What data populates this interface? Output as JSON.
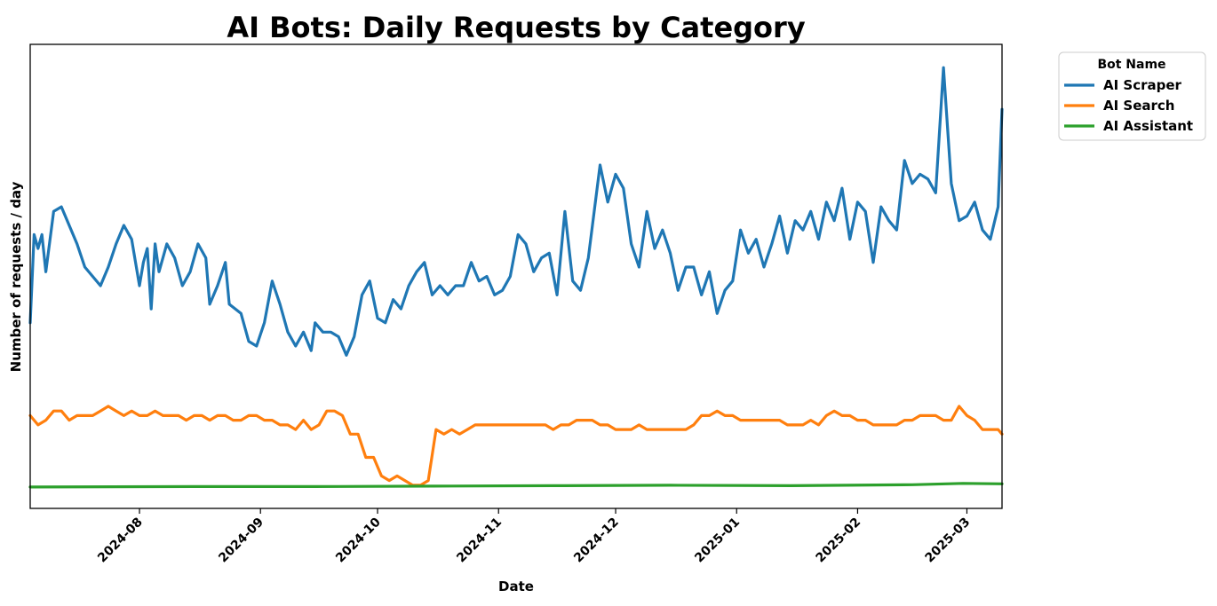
{
  "chart_data": {
    "type": "line",
    "title": "AI Bots: Daily Requests by Category",
    "xlabel": "Date",
    "ylabel": "Number of requests / day",
    "x_range": [
      "2024-07-04",
      "2025-03-10"
    ],
    "x_ticks": [
      "2024-08",
      "2024-09",
      "2024-10",
      "2024-11",
      "2024-12",
      "2025-01",
      "2025-02",
      "2025-03"
    ],
    "y_ticks_shown": false,
    "ylim": [
      0,
      100
    ],
    "grid": false,
    "legend": {
      "title": "Bot Name",
      "position": "outside-top-right"
    },
    "series": [
      {
        "name": "AI Scraper",
        "color": "#1f77b4",
        "points": [
          [
            "2024-07-04",
            40
          ],
          [
            "2024-07-05",
            59
          ],
          [
            "2024-07-06",
            56
          ],
          [
            "2024-07-07",
            59
          ],
          [
            "2024-07-08",
            51
          ],
          [
            "2024-07-10",
            64
          ],
          [
            "2024-07-12",
            65
          ],
          [
            "2024-07-14",
            61
          ],
          [
            "2024-07-16",
            57
          ],
          [
            "2024-07-18",
            52
          ],
          [
            "2024-07-20",
            50
          ],
          [
            "2024-07-22",
            48
          ],
          [
            "2024-07-24",
            52
          ],
          [
            "2024-07-26",
            57
          ],
          [
            "2024-07-28",
            61
          ],
          [
            "2024-07-30",
            58
          ],
          [
            "2024-08-01",
            48
          ],
          [
            "2024-08-02",
            53
          ],
          [
            "2024-08-03",
            56
          ],
          [
            "2024-08-04",
            43
          ],
          [
            "2024-08-05",
            57
          ],
          [
            "2024-08-06",
            51
          ],
          [
            "2024-08-08",
            57
          ],
          [
            "2024-08-10",
            54
          ],
          [
            "2024-08-12",
            48
          ],
          [
            "2024-08-14",
            51
          ],
          [
            "2024-08-16",
            57
          ],
          [
            "2024-08-18",
            54
          ],
          [
            "2024-08-19",
            44
          ],
          [
            "2024-08-21",
            48
          ],
          [
            "2024-08-23",
            53
          ],
          [
            "2024-08-24",
            44
          ],
          [
            "2024-08-27",
            42
          ],
          [
            "2024-08-29",
            36
          ],
          [
            "2024-08-31",
            35
          ],
          [
            "2024-09-02",
            40
          ],
          [
            "2024-09-04",
            49
          ],
          [
            "2024-09-06",
            44
          ],
          [
            "2024-09-08",
            38
          ],
          [
            "2024-09-10",
            35
          ],
          [
            "2024-09-12",
            38
          ],
          [
            "2024-09-14",
            34
          ],
          [
            "2024-09-15",
            40
          ],
          [
            "2024-09-17",
            38
          ],
          [
            "2024-09-19",
            38
          ],
          [
            "2024-09-21",
            37
          ],
          [
            "2024-09-23",
            33
          ],
          [
            "2024-09-25",
            37
          ],
          [
            "2024-09-27",
            46
          ],
          [
            "2024-09-29",
            49
          ],
          [
            "2024-10-01",
            41
          ],
          [
            "2024-10-03",
            40
          ],
          [
            "2024-10-05",
            45
          ],
          [
            "2024-10-07",
            43
          ],
          [
            "2024-10-09",
            48
          ],
          [
            "2024-10-11",
            51
          ],
          [
            "2024-10-13",
            53
          ],
          [
            "2024-10-15",
            46
          ],
          [
            "2024-10-17",
            48
          ],
          [
            "2024-10-19",
            46
          ],
          [
            "2024-10-21",
            48
          ],
          [
            "2024-10-23",
            48
          ],
          [
            "2024-10-25",
            53
          ],
          [
            "2024-10-27",
            49
          ],
          [
            "2024-10-29",
            50
          ],
          [
            "2024-10-31",
            46
          ],
          [
            "2024-11-02",
            47
          ],
          [
            "2024-11-04",
            50
          ],
          [
            "2024-11-06",
            59
          ],
          [
            "2024-11-08",
            57
          ],
          [
            "2024-11-10",
            51
          ],
          [
            "2024-11-12",
            54
          ],
          [
            "2024-11-14",
            55
          ],
          [
            "2024-11-16",
            46
          ],
          [
            "2024-11-18",
            64
          ],
          [
            "2024-11-20",
            49
          ],
          [
            "2024-11-22",
            47
          ],
          [
            "2024-11-24",
            54
          ],
          [
            "2024-11-27",
            74
          ],
          [
            "2024-11-29",
            66
          ],
          [
            "2024-12-01",
            72
          ],
          [
            "2024-12-03",
            69
          ],
          [
            "2024-12-05",
            57
          ],
          [
            "2024-12-07",
            52
          ],
          [
            "2024-12-09",
            64
          ],
          [
            "2024-12-11",
            56
          ],
          [
            "2024-12-13",
            60
          ],
          [
            "2024-12-15",
            55
          ],
          [
            "2024-12-17",
            47
          ],
          [
            "2024-12-19",
            52
          ],
          [
            "2024-12-21",
            52
          ],
          [
            "2024-12-23",
            46
          ],
          [
            "2024-12-25",
            51
          ],
          [
            "2024-12-27",
            42
          ],
          [
            "2024-12-29",
            47
          ],
          [
            "2024-12-31",
            49
          ],
          [
            "2025-01-02",
            60
          ],
          [
            "2025-01-04",
            55
          ],
          [
            "2025-01-06",
            58
          ],
          [
            "2025-01-08",
            52
          ],
          [
            "2025-01-10",
            57
          ],
          [
            "2025-01-12",
            63
          ],
          [
            "2025-01-14",
            55
          ],
          [
            "2025-01-16",
            62
          ],
          [
            "2025-01-18",
            60
          ],
          [
            "2025-01-20",
            64
          ],
          [
            "2025-01-22",
            58
          ],
          [
            "2025-01-24",
            66
          ],
          [
            "2025-01-26",
            62
          ],
          [
            "2025-01-28",
            69
          ],
          [
            "2025-01-30",
            58
          ],
          [
            "2025-02-01",
            66
          ],
          [
            "2025-02-03",
            64
          ],
          [
            "2025-02-05",
            53
          ],
          [
            "2025-02-07",
            65
          ],
          [
            "2025-02-09",
            62
          ],
          [
            "2025-02-11",
            60
          ],
          [
            "2025-02-13",
            75
          ],
          [
            "2025-02-15",
            70
          ],
          [
            "2025-02-17",
            72
          ],
          [
            "2025-02-19",
            71
          ],
          [
            "2025-02-21",
            68
          ],
          [
            "2025-02-23",
            95
          ],
          [
            "2025-02-25",
            70
          ],
          [
            "2025-02-27",
            62
          ],
          [
            "2025-03-01",
            63
          ],
          [
            "2025-03-03",
            66
          ],
          [
            "2025-03-05",
            60
          ],
          [
            "2025-03-07",
            58
          ],
          [
            "2025-03-09",
            65
          ],
          [
            "2025-03-10",
            86
          ]
        ]
      },
      {
        "name": "AI Search",
        "color": "#ff7f0e",
        "points": [
          [
            "2024-07-04",
            20
          ],
          [
            "2024-07-06",
            18
          ],
          [
            "2024-07-08",
            19
          ],
          [
            "2024-07-10",
            21
          ],
          [
            "2024-07-12",
            21
          ],
          [
            "2024-07-14",
            19
          ],
          [
            "2024-07-16",
            20
          ],
          [
            "2024-07-18",
            20
          ],
          [
            "2024-07-20",
            20
          ],
          [
            "2024-07-22",
            21
          ],
          [
            "2024-07-24",
            22
          ],
          [
            "2024-07-26",
            21
          ],
          [
            "2024-07-28",
            20
          ],
          [
            "2024-07-30",
            21
          ],
          [
            "2024-08-01",
            20
          ],
          [
            "2024-08-03",
            20
          ],
          [
            "2024-08-05",
            21
          ],
          [
            "2024-08-07",
            20
          ],
          [
            "2024-08-09",
            20
          ],
          [
            "2024-08-11",
            20
          ],
          [
            "2024-08-13",
            19
          ],
          [
            "2024-08-15",
            20
          ],
          [
            "2024-08-17",
            20
          ],
          [
            "2024-08-19",
            19
          ],
          [
            "2024-08-21",
            20
          ],
          [
            "2024-08-23",
            20
          ],
          [
            "2024-08-25",
            19
          ],
          [
            "2024-08-27",
            19
          ],
          [
            "2024-08-29",
            20
          ],
          [
            "2024-08-31",
            20
          ],
          [
            "2024-09-02",
            19
          ],
          [
            "2024-09-04",
            19
          ],
          [
            "2024-09-06",
            18
          ],
          [
            "2024-09-08",
            18
          ],
          [
            "2024-09-10",
            17
          ],
          [
            "2024-09-12",
            19
          ],
          [
            "2024-09-14",
            17
          ],
          [
            "2024-09-16",
            18
          ],
          [
            "2024-09-18",
            21
          ],
          [
            "2024-09-20",
            21
          ],
          [
            "2024-09-22",
            20
          ],
          [
            "2024-09-24",
            16
          ],
          [
            "2024-09-26",
            16
          ],
          [
            "2024-09-28",
            11
          ],
          [
            "2024-09-30",
            11
          ],
          [
            "2024-10-02",
            7
          ],
          [
            "2024-10-04",
            6
          ],
          [
            "2024-10-06",
            7
          ],
          [
            "2024-10-08",
            6
          ],
          [
            "2024-10-10",
            5
          ],
          [
            "2024-10-12",
            5
          ],
          [
            "2024-10-14",
            6
          ],
          [
            "2024-10-16",
            17
          ],
          [
            "2024-10-18",
            16
          ],
          [
            "2024-10-20",
            17
          ],
          [
            "2024-10-22",
            16
          ],
          [
            "2024-10-24",
            17
          ],
          [
            "2024-10-26",
            18
          ],
          [
            "2024-10-28",
            18
          ],
          [
            "2024-10-30",
            18
          ],
          [
            "2024-11-01",
            18
          ],
          [
            "2024-11-03",
            18
          ],
          [
            "2024-11-05",
            18
          ],
          [
            "2024-11-07",
            18
          ],
          [
            "2024-11-09",
            18
          ],
          [
            "2024-11-11",
            18
          ],
          [
            "2024-11-13",
            18
          ],
          [
            "2024-11-15",
            17
          ],
          [
            "2024-11-17",
            18
          ],
          [
            "2024-11-19",
            18
          ],
          [
            "2024-11-21",
            19
          ],
          [
            "2024-11-23",
            19
          ],
          [
            "2024-11-25",
            19
          ],
          [
            "2024-11-27",
            18
          ],
          [
            "2024-11-29",
            18
          ],
          [
            "2024-12-01",
            17
          ],
          [
            "2024-12-03",
            17
          ],
          [
            "2024-12-05",
            17
          ],
          [
            "2024-12-07",
            18
          ],
          [
            "2024-12-09",
            17
          ],
          [
            "2024-12-11",
            17
          ],
          [
            "2024-12-13",
            17
          ],
          [
            "2024-12-15",
            17
          ],
          [
            "2024-12-17",
            17
          ],
          [
            "2024-12-19",
            17
          ],
          [
            "2024-12-21",
            18
          ],
          [
            "2024-12-23",
            20
          ],
          [
            "2024-12-25",
            20
          ],
          [
            "2024-12-27",
            21
          ],
          [
            "2024-12-29",
            20
          ],
          [
            "2024-12-31",
            20
          ],
          [
            "2025-01-02",
            19
          ],
          [
            "2025-01-04",
            19
          ],
          [
            "2025-01-06",
            19
          ],
          [
            "2025-01-08",
            19
          ],
          [
            "2025-01-10",
            19
          ],
          [
            "2025-01-12",
            19
          ],
          [
            "2025-01-14",
            18
          ],
          [
            "2025-01-16",
            18
          ],
          [
            "2025-01-18",
            18
          ],
          [
            "2025-01-20",
            19
          ],
          [
            "2025-01-22",
            18
          ],
          [
            "2025-01-24",
            20
          ],
          [
            "2025-01-26",
            21
          ],
          [
            "2025-01-28",
            20
          ],
          [
            "2025-01-30",
            20
          ],
          [
            "2025-02-01",
            19
          ],
          [
            "2025-02-03",
            19
          ],
          [
            "2025-02-05",
            18
          ],
          [
            "2025-02-07",
            18
          ],
          [
            "2025-02-09",
            18
          ],
          [
            "2025-02-11",
            18
          ],
          [
            "2025-02-13",
            19
          ],
          [
            "2025-02-15",
            19
          ],
          [
            "2025-02-17",
            20
          ],
          [
            "2025-02-19",
            20
          ],
          [
            "2025-02-21",
            20
          ],
          [
            "2025-02-23",
            19
          ],
          [
            "2025-02-25",
            19
          ],
          [
            "2025-02-27",
            22
          ],
          [
            "2025-03-01",
            20
          ],
          [
            "2025-03-03",
            19
          ],
          [
            "2025-03-05",
            17
          ],
          [
            "2025-03-07",
            17
          ],
          [
            "2025-03-09",
            17
          ],
          [
            "2025-03-10",
            16
          ]
        ]
      },
      {
        "name": "AI Assistant",
        "color": "#2ca02c",
        "points": [
          [
            "2024-07-04",
            4.6
          ],
          [
            "2024-08-15",
            4.7
          ],
          [
            "2024-09-15",
            4.7
          ],
          [
            "2024-10-15",
            4.8
          ],
          [
            "2024-11-15",
            4.9
          ],
          [
            "2024-12-15",
            5.0
          ],
          [
            "2025-01-15",
            4.9
          ],
          [
            "2025-02-15",
            5.1
          ],
          [
            "2025-02-28",
            5.4
          ],
          [
            "2025-03-10",
            5.3
          ]
        ]
      }
    ]
  }
}
